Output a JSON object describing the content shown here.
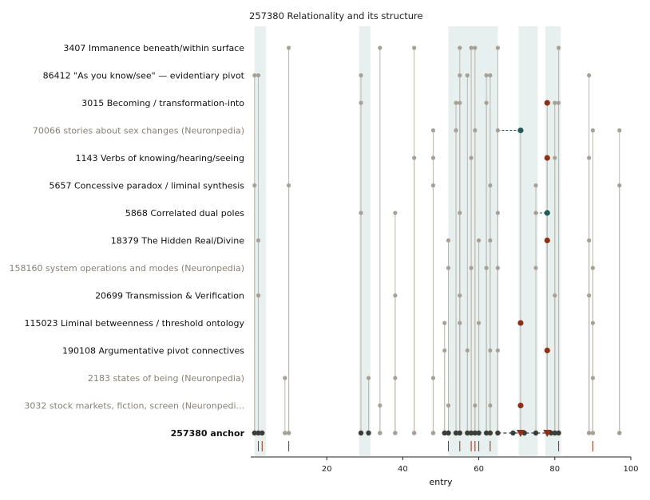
{
  "chart_data": {
    "type": "scatter",
    "title": "257380  Relationality and its structure",
    "xlabel": "entry",
    "ylabel": "",
    "xlim": [
      0,
      100
    ],
    "x_ticks": [
      20,
      40,
      60,
      80,
      100
    ],
    "shaded_ranges": [
      [
        1,
        4
      ],
      [
        28.5,
        31.5
      ],
      [
        52,
        65
      ],
      [
        70.5,
        75.5
      ],
      [
        77.5,
        81.5
      ]
    ],
    "colors": {
      "point": "#a6a196",
      "stem": "#bcb8ae",
      "anchor": "#3a3d38",
      "highlight_red": "#8b3115",
      "highlight_teal": "#245c5a",
      "band": "#e7efef",
      "label_dim": "#888177"
    },
    "rows": [
      {
        "id": "3407",
        "label": "Immanence beneath/within surface",
        "style": "normal",
        "points": [
          10,
          34,
          43,
          55,
          58,
          59,
          65,
          81
        ],
        "highlights": []
      },
      {
        "id": "86412",
        "label": "\"As you know/see\" — evidentiary pivot",
        "style": "normal",
        "points": [
          1,
          2,
          29,
          55,
          57,
          62,
          63,
          89
        ],
        "highlights": []
      },
      {
        "id": "3015",
        "label": "Becoming / transformation-into",
        "style": "normal",
        "points": [
          29,
          54,
          55,
          62,
          80,
          81
        ],
        "highlights": [
          {
            "x": 78,
            "color": "red",
            "link_to_anchor": false
          }
        ]
      },
      {
        "id": "70066",
        "label": "stories about sex changes (Neuronpedia)",
        "style": "dim",
        "points": [
          48,
          54,
          59,
          65,
          90,
          97
        ],
        "highlights": [
          {
            "x": 71,
            "color": "teal",
            "dashed_from": 65
          }
        ]
      },
      {
        "id": "1143",
        "label": "Verbs of knowing/hearing/seeing",
        "style": "normal",
        "points": [
          43,
          48,
          58,
          80,
          89
        ],
        "highlights": [
          {
            "x": 78,
            "color": "red"
          }
        ]
      },
      {
        "id": "5657",
        "label": "Concessive paradox / liminal synthesis",
        "style": "normal",
        "points": [
          1,
          10,
          48,
          63,
          75,
          97
        ],
        "highlights": []
      },
      {
        "id": "5868",
        "label": "Correlated dual poles",
        "style": "normal",
        "points": [
          29,
          38,
          55,
          65,
          75
        ],
        "highlights": [
          {
            "x": 78,
            "color": "teal",
            "dashed_from": 75
          }
        ]
      },
      {
        "id": "18379",
        "label": "The Hidden Real/Divine",
        "style": "normal",
        "points": [
          2,
          52,
          60,
          63,
          89
        ],
        "highlights": [
          {
            "x": 78,
            "color": "red"
          }
        ]
      },
      {
        "id": "158160",
        "label": "system operations and modes (Neuronpedia)",
        "style": "dim",
        "points": [
          52,
          58,
          62,
          65,
          75,
          90
        ],
        "highlights": []
      },
      {
        "id": "20699",
        "label": "Transmission & Verification",
        "style": "normal",
        "points": [
          2,
          38,
          55,
          80,
          89
        ],
        "highlights": []
      },
      {
        "id": "115023",
        "label": "Liminal betweenness / threshold ontology",
        "style": "normal",
        "points": [
          51,
          55,
          60,
          90
        ],
        "highlights": [
          {
            "x": 71,
            "color": "red"
          }
        ]
      },
      {
        "id": "190108",
        "label": "Argumentative pivot connectives",
        "style": "normal",
        "points": [
          51,
          57,
          63,
          65
        ],
        "highlights": [
          {
            "x": 78,
            "color": "red"
          }
        ]
      },
      {
        "id": "2183",
        "label": "states of being (Neuronpedia)",
        "style": "dim",
        "points": [
          9,
          31,
          38,
          48,
          90
        ],
        "highlights": []
      },
      {
        "id": "3032",
        "label": "stock markets, fiction, screen (Neuronpedi...",
        "style": "dim",
        "points": [
          34,
          52,
          59,
          63
        ],
        "highlights": [
          {
            "x": 71,
            "color": "red"
          }
        ]
      }
    ],
    "anchor": {
      "id": "257380",
      "label": "anchor",
      "dark_points": [
        1,
        2,
        3,
        29,
        31,
        51,
        52,
        54,
        55,
        57,
        58,
        59,
        60,
        62,
        63,
        65,
        69,
        72,
        75,
        79,
        80,
        81
      ],
      "light_points": [
        9,
        10,
        34,
        38,
        43,
        48,
        89,
        90,
        97
      ],
      "triangle_markers": [
        71,
        78
      ],
      "dashed_segment": [
        65,
        78
      ],
      "rug_ticks": [
        2,
        3,
        10,
        52,
        55,
        58,
        59,
        60,
        63,
        81,
        90
      ]
    }
  }
}
